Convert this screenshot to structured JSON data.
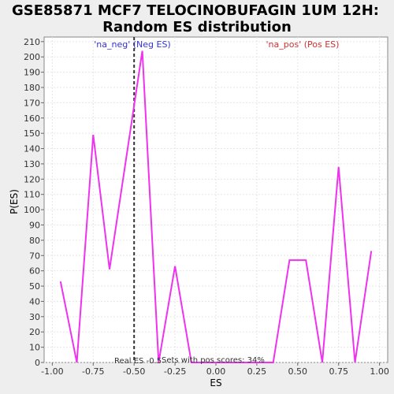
{
  "chart_data": {
    "type": "line",
    "title_line1": "GSE85871 MCF7 TELOCINOBUFAGIN 1UM 12H:",
    "title_line2": "Random ES distribution",
    "xlabel": "ES",
    "ylabel": "P(ES)",
    "xlim": [
      -1.05,
      1.05
    ],
    "ylim": [
      0,
      213
    ],
    "x_ticks": [
      -1.0,
      -0.75,
      -0.5,
      -0.25,
      0.0,
      0.25,
      0.5,
      0.75,
      1.0
    ],
    "x_tick_labels": [
      "-1.00",
      "-0.75",
      "-0.50",
      "-0.25",
      "0.00",
      "0.25",
      "0.50",
      "0.75",
      "1.00"
    ],
    "y_ticks": [
      0,
      10,
      20,
      30,
      40,
      50,
      60,
      70,
      80,
      90,
      100,
      110,
      120,
      130,
      140,
      150,
      160,
      170,
      180,
      190,
      200,
      210
    ],
    "grid": true,
    "series": [
      {
        "color": "#ee33ee",
        "x": [
          -0.95,
          -0.85,
          -0.75,
          -0.65,
          -0.45,
          -0.35,
          -0.25,
          -0.15,
          -0.05,
          0.05,
          0.15,
          0.25,
          0.35,
          0.45,
          0.55,
          0.65,
          0.75,
          0.85,
          0.95
        ],
        "y": [
          53,
          0,
          149,
          61,
          204,
          0,
          63,
          0,
          0,
          0,
          0,
          0,
          0,
          67,
          67,
          0,
          128,
          0,
          73
        ]
      }
    ],
    "real_es": -0.5,
    "annotations": {
      "neg_label": "'na_neg' (Neg ES)",
      "pos_label": "'na_pos' (Pos ES)",
      "neg_color": "#3333cc",
      "pos_color": "#cc3333",
      "real_es_label": "Real ES -0.5",
      "pos_scores_label": "Sets with pos scores: 34%"
    }
  }
}
